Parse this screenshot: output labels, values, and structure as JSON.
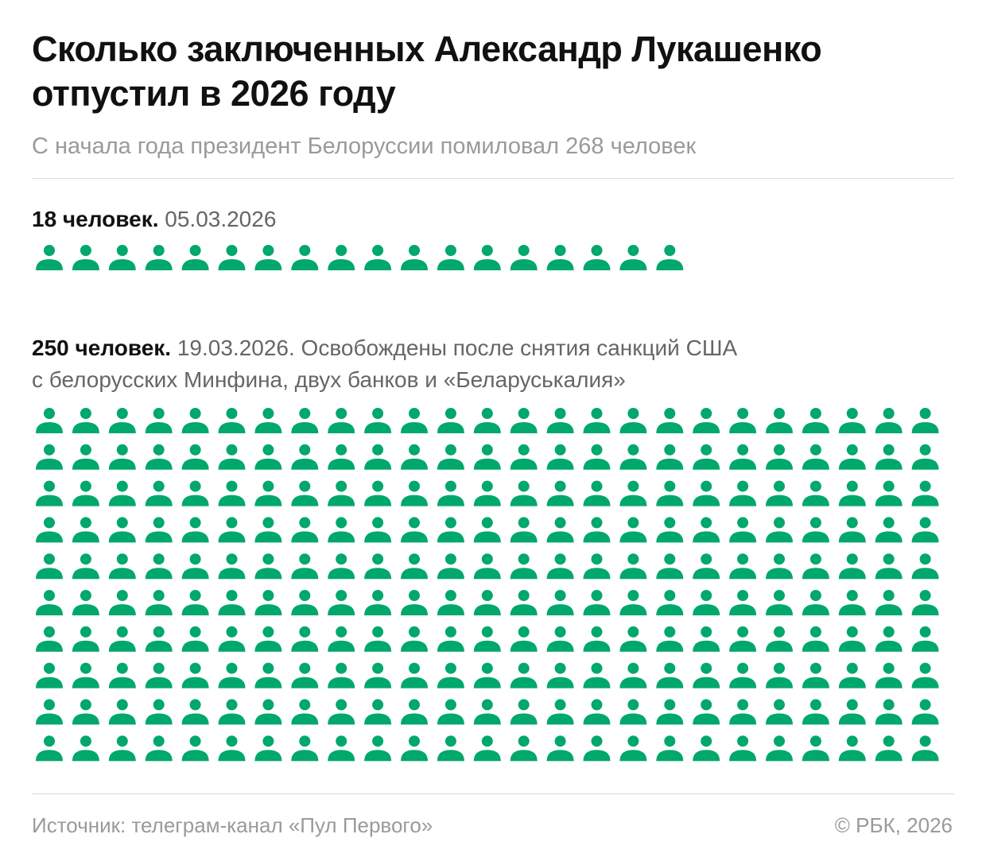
{
  "chart_data": {
    "type": "pictogram",
    "title": "Сколько заключенных Александр Лукашенко отпустил в 2026 году",
    "subtitle": "С начала года президент Белоруссии помиловал 268 человек",
    "icon": "person-icon",
    "icon_color": "#00a86b",
    "groups": [
      {
        "count_label": "18 человек.",
        "note": "05.03.2026",
        "value": 18,
        "columns": 18
      },
      {
        "count_label": "250 человек.",
        "note": "19.03.2026. Освобождены после снятия санкций США",
        "note_line2": "с белорусских Минфина, двух банков и «Беларуськалия»",
        "value": 250,
        "columns": 25
      }
    ]
  },
  "footer": {
    "source": "Источник: телеграм-канал «Пул Первого»",
    "copyright": "© РБК, 2026"
  }
}
